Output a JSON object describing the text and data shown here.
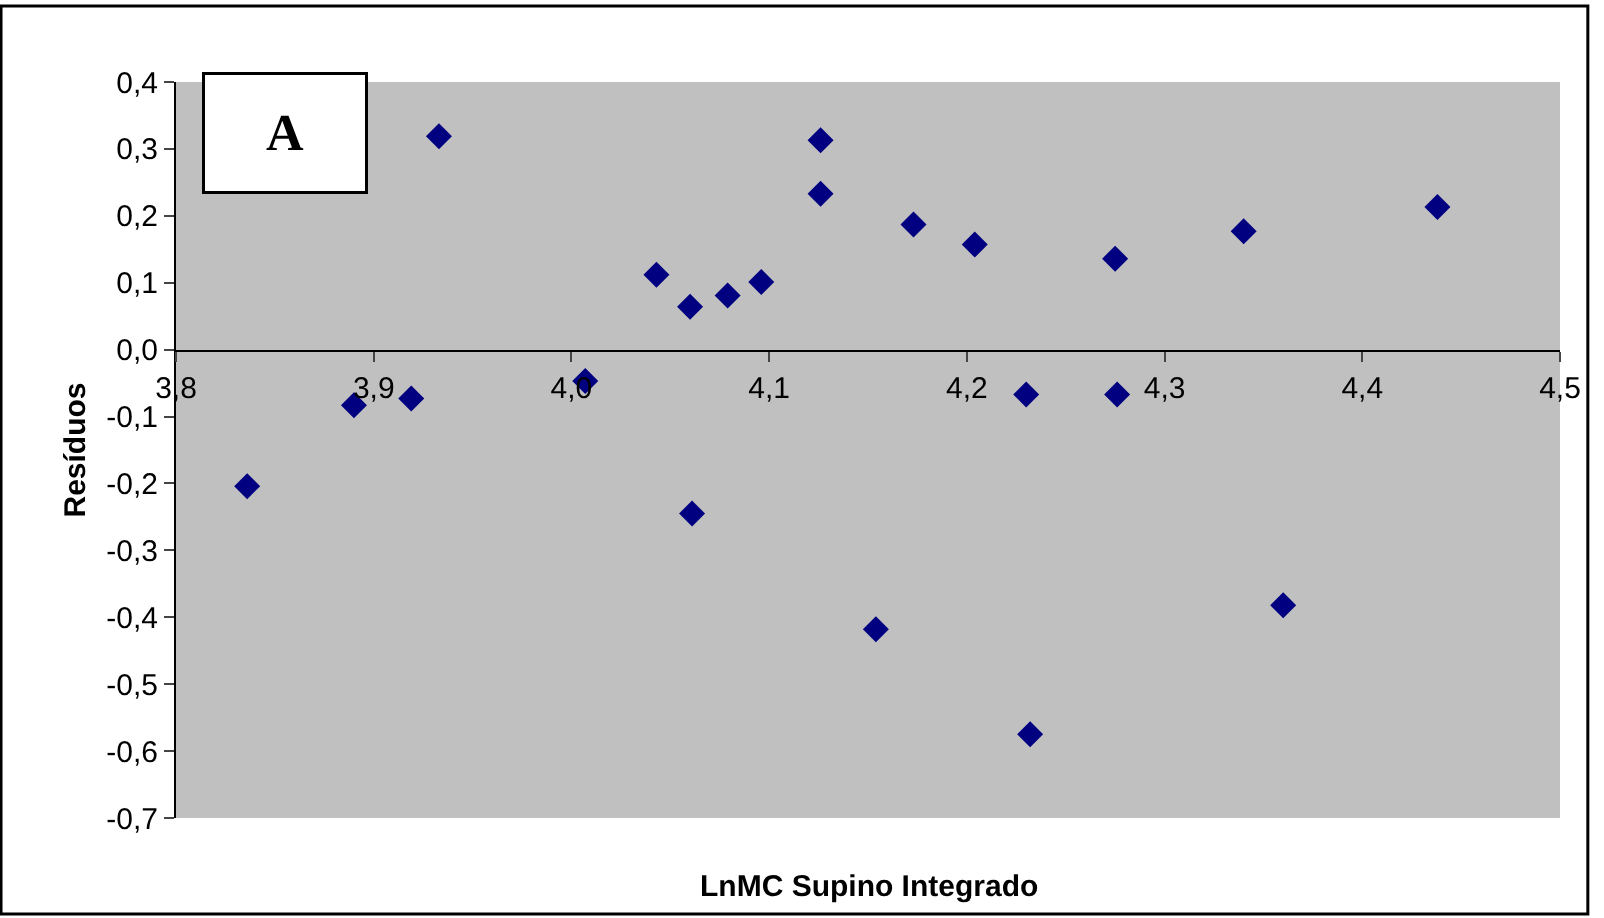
{
  "chart_data": {
    "type": "scatter",
    "xlabel": "LnMC Supino Integrado",
    "ylabel": "Resíduos",
    "annotations": [
      "A"
    ],
    "x": [
      3.836,
      3.89,
      3.919,
      3.933,
      4.007,
      4.043,
      4.06,
      4.079,
      4.096,
      4.061,
      4.126,
      4.126,
      4.173,
      4.204,
      4.23,
      4.275,
      4.276,
      4.34,
      4.438,
      4.154,
      4.232,
      4.36
    ],
    "series": [
      {
        "color": "#000080",
        "values": [
          -0.204,
          -0.083,
          -0.073,
          0.319,
          -0.047,
          0.112,
          0.064,
          0.081,
          0.101,
          -0.245,
          0.313,
          0.233,
          0.187,
          0.157,
          -0.067,
          0.136,
          -0.067,
          0.177,
          0.213,
          -0.418,
          -0.575,
          -0.382
        ]
      }
    ],
    "xlim": [
      3.8,
      4.5
    ],
    "xticks": [
      {
        "value": 3.8,
        "label": "3,8"
      },
      {
        "value": 3.9,
        "label": "3,9"
      },
      {
        "value": 4.0,
        "label": "4,0"
      },
      {
        "value": 4.1,
        "label": "4,1"
      },
      {
        "value": 4.2,
        "label": "4,2"
      },
      {
        "value": 4.3,
        "label": "4,3"
      },
      {
        "value": 4.4,
        "label": "4,4"
      },
      {
        "value": 4.5,
        "label": "4,5"
      }
    ],
    "ylim": [
      -0.7,
      0.4
    ],
    "yticks": [
      {
        "value": 0.4,
        "label": "0,4"
      },
      {
        "value": 0.3,
        "label": "0,3"
      },
      {
        "value": 0.2,
        "label": "0,2"
      },
      {
        "value": 0.1,
        "label": "0,1"
      },
      {
        "value": 0.0,
        "label": "0,0"
      },
      {
        "value": -0.1,
        "label": "-0,1"
      },
      {
        "value": -0.2,
        "label": "-0,2"
      },
      {
        "value": -0.3,
        "label": "-0,3"
      },
      {
        "value": -0.4,
        "label": "-0,4"
      },
      {
        "value": -0.5,
        "label": "-0,5"
      },
      {
        "value": -0.6,
        "label": "-0,6"
      },
      {
        "value": -0.7,
        "label": "-0,7"
      }
    ],
    "grid": false,
    "marker": "diamond"
  }
}
